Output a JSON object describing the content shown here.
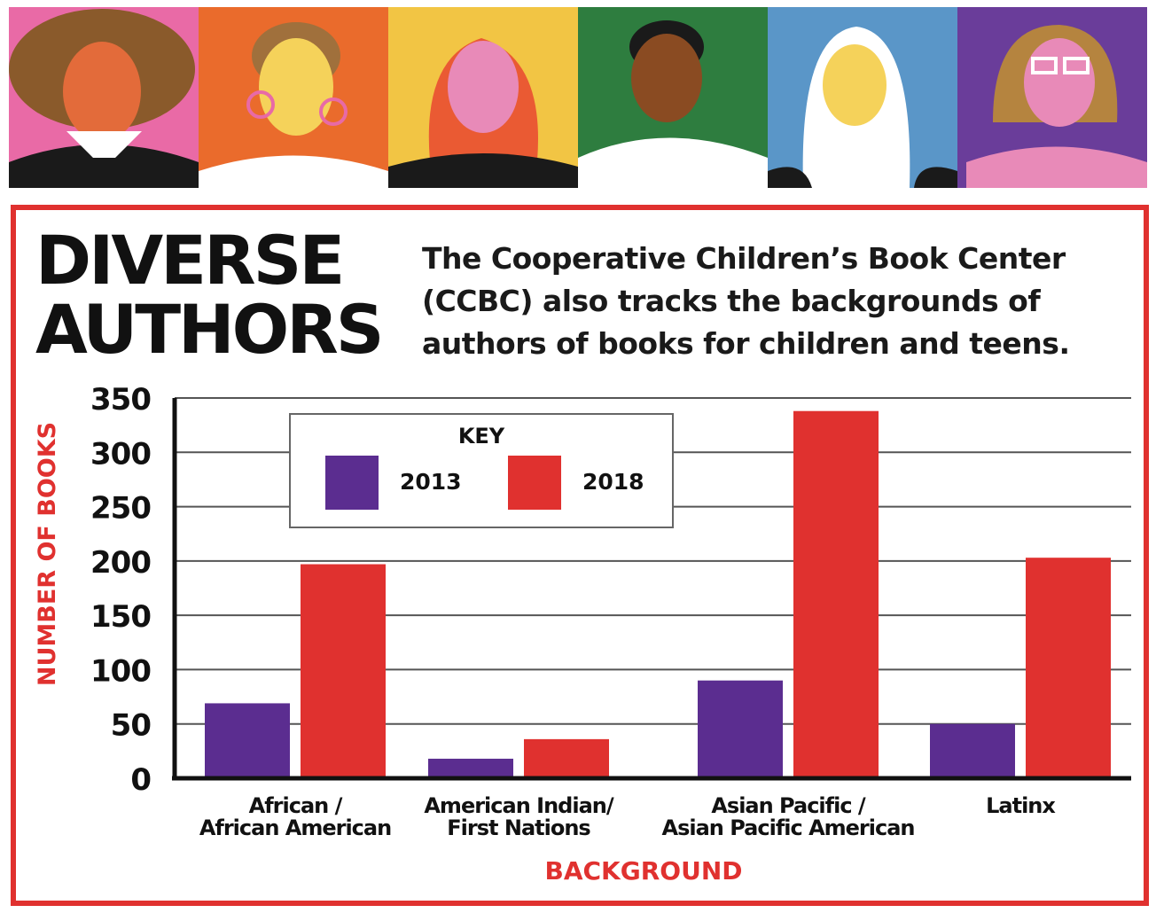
{
  "header": {
    "title_line1": "DIVERSE",
    "title_line2": "AUTHORS",
    "description_lines": [
      "The Cooperative Children’s Book Center",
      "(CCBC) also tracks the backgrounds of",
      "authors of books for children and teens."
    ]
  },
  "banner": {
    "panel_colors": [
      "#e96aa6",
      "#ea6b2c",
      "#f2c544",
      "#2e7d3f",
      "#5a96c8",
      "#6a3d9a"
    ]
  },
  "chart_data": {
    "type": "bar",
    "xlabel": "BACKGROUND",
    "ylabel": "NUMBER OF BOOKS",
    "ylim": [
      0,
      350
    ],
    "yticks": [
      "0",
      "50",
      "100",
      "150",
      "200",
      "250",
      "300",
      "350"
    ],
    "grid": true,
    "categories": [
      [
        "African /",
        "African American"
      ],
      [
        "American Indian/",
        "First Nations"
      ],
      [
        "Asian Pacific /",
        "Asian Pacific American"
      ],
      [
        "Latinx"
      ]
    ],
    "series": [
      {
        "name": "2013",
        "color": "#5b2d90",
        "values": [
          69,
          18,
          90,
          50
        ]
      },
      {
        "name": "2018",
        "color": "#e0312f",
        "values": [
          197,
          36,
          338,
          203
        ]
      }
    ],
    "legend": {
      "title": "KEY",
      "placement": "top-left"
    }
  }
}
